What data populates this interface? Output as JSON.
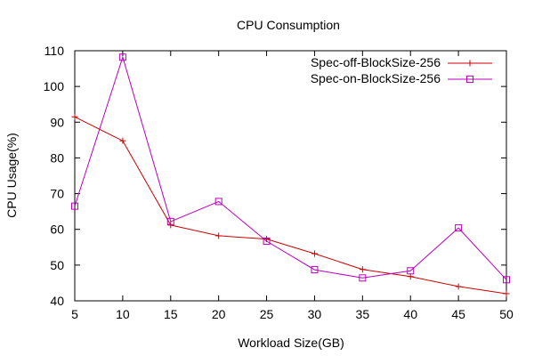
{
  "chart_data": {
    "type": "line",
    "title": "CPU Consumption",
    "xlabel": "Workload Size(GB)",
    "ylabel": "CPU Usage(%)",
    "x": [
      5,
      10,
      15,
      20,
      25,
      30,
      35,
      40,
      45,
      50
    ],
    "xlim": [
      5,
      50
    ],
    "ylim": [
      40,
      110
    ],
    "xticks": [
      "5",
      "10",
      "15",
      "20",
      "25",
      "30",
      "35",
      "40",
      "45",
      "50"
    ],
    "yticks": [
      "40",
      "50",
      "60",
      "70",
      "80",
      "90",
      "100",
      "110"
    ],
    "grid": false,
    "legend_position": "top-right",
    "series": [
      {
        "name": "Spec-off-BlockSize-256",
        "color": "#cc0000",
        "marker": "plus",
        "values": [
          91.5,
          84.8,
          61.2,
          58.2,
          57.3,
          53.2,
          48.8,
          46.8,
          44.0,
          42.0
        ]
      },
      {
        "name": "Spec-on-BlockSize-256",
        "color": "#bb00bb",
        "marker": "square",
        "values": [
          66.5,
          108.2,
          62.2,
          67.8,
          56.7,
          48.7,
          46.4,
          48.4,
          60.4,
          45.9
        ]
      }
    ]
  }
}
